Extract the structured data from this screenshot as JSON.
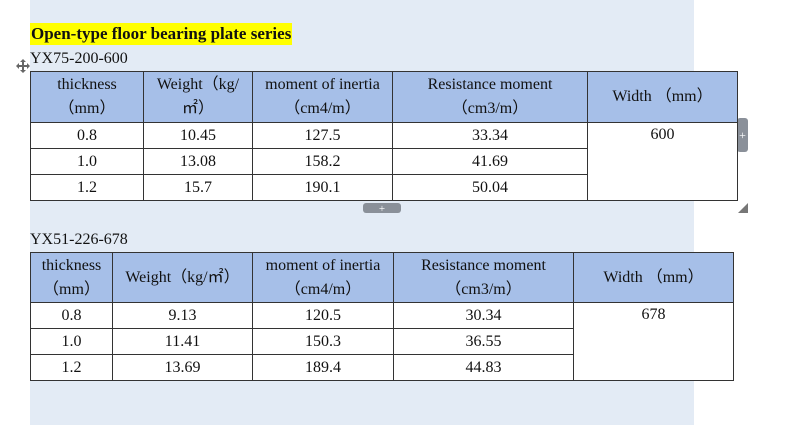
{
  "title": "Open-type floor bearing plate series",
  "tables": [
    {
      "label": "YX75-200-600",
      "header": [
        [
          "thickness",
          "（mm）"
        ],
        [
          "Weight（kg/",
          "㎡）"
        ],
        [
          "moment of inertia",
          "（cm4/m）"
        ],
        [
          "Resistance moment",
          "（cm3/m）"
        ],
        [
          "Width （mm）"
        ]
      ],
      "rows": [
        [
          "0.8",
          "10.45",
          "127.5",
          "33.34"
        ],
        [
          "1.0",
          "13.08",
          "158.2",
          "41.69"
        ],
        [
          "1.2",
          "15.7",
          "190.1",
          "50.04"
        ]
      ],
      "width_value": "600"
    },
    {
      "label": "YX51-226-678",
      "header": [
        [
          "thickness",
          "（mm）"
        ],
        [
          "Weight（kg/㎡）"
        ],
        [
          "moment of inertia",
          "（cm4/m）"
        ],
        [
          "Resistance moment",
          "（cm3/m）"
        ],
        [
          "Width （mm）"
        ]
      ],
      "rows": [
        [
          "0.8",
          "9.13",
          "120.5",
          "30.34"
        ],
        [
          "1.0",
          "11.41",
          "150.3",
          "36.55"
        ],
        [
          "1.2",
          "13.69",
          "189.4",
          "44.83"
        ]
      ],
      "width_value": "678"
    }
  ]
}
